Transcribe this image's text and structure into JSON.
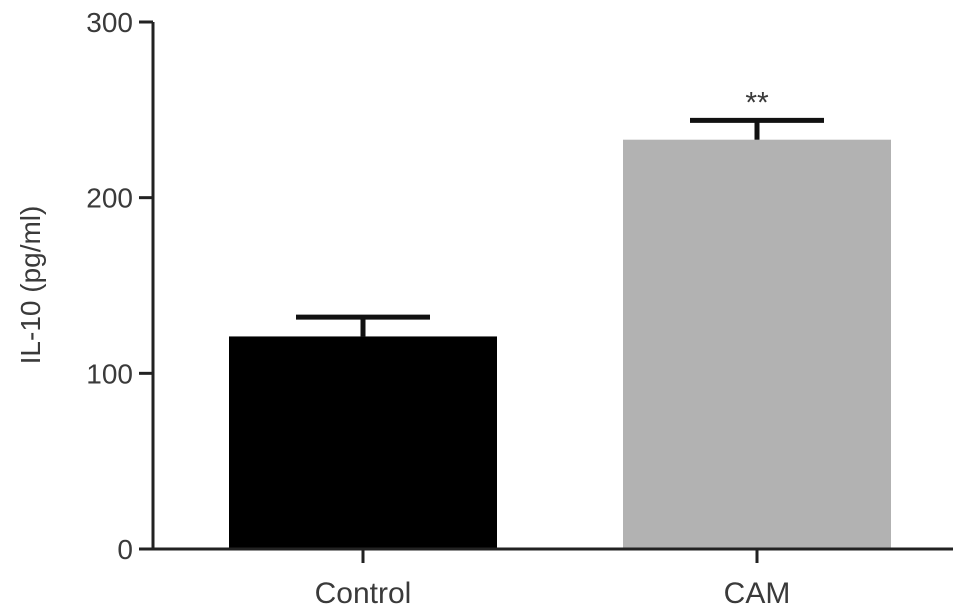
{
  "chart_data": {
    "type": "bar",
    "title": "",
    "xlabel": "",
    "ylabel": "IL-10 (pg/ml)",
    "ylim": [
      0,
      300
    ],
    "yticks": [
      0,
      100,
      200,
      300
    ],
    "categories": [
      "Control",
      "CAM"
    ],
    "values": [
      121,
      233
    ],
    "errors": [
      11,
      11
    ],
    "bar_colors": [
      "#000000",
      "#b2b2b2"
    ],
    "annotations": [
      "",
      "**"
    ],
    "grid": false,
    "legend": "none"
  }
}
